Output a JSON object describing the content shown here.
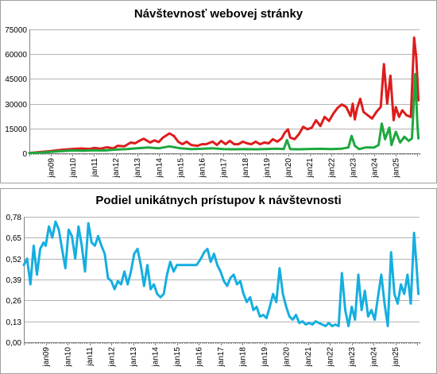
{
  "chart_data": [
    {
      "type": "line",
      "title": "Návštevnosť webovej stránky",
      "xlabel": "",
      "ylabel": "",
      "ylim": [
        0,
        75000
      ],
      "yticks": [
        "0",
        "15000",
        "30000",
        "45000",
        "60000",
        "75000"
      ],
      "xticks": [
        "jan09",
        "jan10",
        "jan11",
        "jan12",
        "jan13",
        "jan14",
        "jan15",
        "jan16",
        "jan17",
        "jan18",
        "jan19",
        "jan20",
        "jan21",
        "jan22",
        "jan23",
        "jan24",
        "jan25"
      ],
      "xlim": [
        2008.0,
        2026.1
      ],
      "grid": "horizontal",
      "legend": "none",
      "series": [
        {
          "color": "#dd1c1c",
          "points": [
            [
              2008.0,
              200
            ],
            [
              2008.5,
              700
            ],
            [
              2009.0,
              1300
            ],
            [
              2009.3,
              1800
            ],
            [
              2009.6,
              2200
            ],
            [
              2010.0,
              2600
            ],
            [
              2010.4,
              2900
            ],
            [
              2010.8,
              2600
            ],
            [
              2011.0,
              3200
            ],
            [
              2011.3,
              2800
            ],
            [
              2011.6,
              3600
            ],
            [
              2011.9,
              3000
            ],
            [
              2012.1,
              4500
            ],
            [
              2012.4,
              4200
            ],
            [
              2012.7,
              6500
            ],
            [
              2012.9,
              6000
            ],
            [
              2013.1,
              7500
            ],
            [
              2013.3,
              8800
            ],
            [
              2013.6,
              6500
            ],
            [
              2013.8,
              7800
            ],
            [
              2014.0,
              6800
            ],
            [
              2014.2,
              9500
            ],
            [
              2014.5,
              12000
            ],
            [
              2014.7,
              10500
            ],
            [
              2014.9,
              7000
            ],
            [
              2015.1,
              5500
            ],
            [
              2015.3,
              7000
            ],
            [
              2015.5,
              5000
            ],
            [
              2015.8,
              4500
            ],
            [
              2016.0,
              5500
            ],
            [
              2016.2,
              5500
            ],
            [
              2016.5,
              7000
            ],
            [
              2016.7,
              5000
            ],
            [
              2016.9,
              7500
            ],
            [
              2017.1,
              5500
            ],
            [
              2017.3,
              7500
            ],
            [
              2017.5,
              5500
            ],
            [
              2017.7,
              5500
            ],
            [
              2017.9,
              7000
            ],
            [
              2018.1,
              6000
            ],
            [
              2018.3,
              5500
            ],
            [
              2018.5,
              7000
            ],
            [
              2018.7,
              5500
            ],
            [
              2018.9,
              6500
            ],
            [
              2019.1,
              6000
            ],
            [
              2019.3,
              8500
            ],
            [
              2019.5,
              7000
            ],
            [
              2019.7,
              9000
            ],
            [
              2019.85,
              12500
            ],
            [
              2020.0,
              14500
            ],
            [
              2020.1,
              9500
            ],
            [
              2020.3,
              8500
            ],
            [
              2020.5,
              11500
            ],
            [
              2020.7,
              16000
            ],
            [
              2020.9,
              14500
            ],
            [
              2021.1,
              15500
            ],
            [
              2021.3,
              20000
            ],
            [
              2021.5,
              16500
            ],
            [
              2021.7,
              22000
            ],
            [
              2021.9,
              19500
            ],
            [
              2022.1,
              24000
            ],
            [
              2022.3,
              27500
            ],
            [
              2022.5,
              29500
            ],
            [
              2022.7,
              28000
            ],
            [
              2022.9,
              22500
            ],
            [
              2023.0,
              30000
            ],
            [
              2023.1,
              20500
            ],
            [
              2023.2,
              27000
            ],
            [
              2023.35,
              33000
            ],
            [
              2023.5,
              25000
            ],
            [
              2023.7,
              23000
            ],
            [
              2023.9,
              21000
            ],
            [
              2024.1,
              25000
            ],
            [
              2024.3,
              28000
            ],
            [
              2024.45,
              54000
            ],
            [
              2024.6,
              30000
            ],
            [
              2024.75,
              47000
            ],
            [
              2024.9,
              20000
            ],
            [
              2025.0,
              28000
            ],
            [
              2025.15,
              22000
            ],
            [
              2025.3,
              26000
            ],
            [
              2025.5,
              23000
            ],
            [
              2025.7,
              22000
            ],
            [
              2025.85,
              70000
            ],
            [
              2025.95,
              58000
            ],
            [
              2026.05,
              32000
            ]
          ]
        },
        {
          "color": "#1da83e",
          "points": [
            [
              2008.0,
              100
            ],
            [
              2008.5,
              400
            ],
            [
              2009.0,
              800
            ],
            [
              2009.5,
              1300
            ],
            [
              2010.0,
              1700
            ],
            [
              2010.5,
              1500
            ],
            [
              2011.0,
              1800
            ],
            [
              2011.5,
              1700
            ],
            [
              2012.0,
              2200
            ],
            [
              2012.5,
              2500
            ],
            [
              2013.0,
              3000
            ],
            [
              2013.5,
              3500
            ],
            [
              2014.0,
              3000
            ],
            [
              2014.5,
              4200
            ],
            [
              2015.0,
              3000
            ],
            [
              2015.5,
              2500
            ],
            [
              2016.0,
              2700
            ],
            [
              2016.5,
              3000
            ],
            [
              2017.0,
              2500
            ],
            [
              2017.5,
              2400
            ],
            [
              2018.0,
              2500
            ],
            [
              2018.5,
              2400
            ],
            [
              2019.0,
              2600
            ],
            [
              2019.5,
              2800
            ],
            [
              2019.8,
              2500
            ],
            [
              2019.95,
              8000
            ],
            [
              2020.1,
              2500
            ],
            [
              2020.5,
              2400
            ],
            [
              2021.0,
              2600
            ],
            [
              2021.5,
              2700
            ],
            [
              2022.0,
              2500
            ],
            [
              2022.5,
              2800
            ],
            [
              2022.8,
              3500
            ],
            [
              2022.95,
              10500
            ],
            [
              2023.1,
              4500
            ],
            [
              2023.3,
              2500
            ],
            [
              2023.6,
              3500
            ],
            [
              2024.0,
              3500
            ],
            [
              2024.2,
              5000
            ],
            [
              2024.35,
              18000
            ],
            [
              2024.5,
              8500
            ],
            [
              2024.7,
              15500
            ],
            [
              2024.8,
              5000
            ],
            [
              2025.0,
              13000
            ],
            [
              2025.2,
              6500
            ],
            [
              2025.4,
              10000
            ],
            [
              2025.6,
              7500
            ],
            [
              2025.75,
              9000
            ],
            [
              2025.9,
              48000
            ],
            [
              2026.0,
              18000
            ],
            [
              2026.05,
              9000
            ]
          ]
        }
      ]
    },
    {
      "type": "line",
      "title": "Podiel unikátnych prístupov k návštevnosti",
      "xlabel": "",
      "ylabel": "",
      "ylim": [
        0,
        0.78
      ],
      "yticks": [
        "0,00",
        "0,13",
        "0,26",
        "0,39",
        "0,52",
        "0,65",
        "0,78"
      ],
      "xticks": [
        "jan09",
        "jan10",
        "jan11",
        "jan12",
        "jan13",
        "jan14",
        "jan15",
        "jan16",
        "jan17",
        "jan18",
        "jan19",
        "jan20",
        "jan21",
        "jan22",
        "jan23",
        "jan24",
        "jan25"
      ],
      "xlim": [
        2008.0,
        2026.1
      ],
      "grid": "horizontal",
      "legend": "none",
      "series": [
        {
          "color": "#16aee0",
          "points": [
            [
              2008.0,
              0.48
            ],
            [
              2008.15,
              0.52
            ],
            [
              2008.3,
              0.36
            ],
            [
              2008.45,
              0.6
            ],
            [
              2008.6,
              0.42
            ],
            [
              2008.75,
              0.58
            ],
            [
              2008.9,
              0.62
            ],
            [
              2009.0,
              0.6
            ],
            [
              2009.15,
              0.72
            ],
            [
              2009.3,
              0.65
            ],
            [
              2009.45,
              0.75
            ],
            [
              2009.6,
              0.7
            ],
            [
              2009.75,
              0.58
            ],
            [
              2009.9,
              0.46
            ],
            [
              2010.05,
              0.7
            ],
            [
              2010.2,
              0.66
            ],
            [
              2010.35,
              0.52
            ],
            [
              2010.5,
              0.72
            ],
            [
              2010.65,
              0.6
            ],
            [
              2010.8,
              0.44
            ],
            [
              2010.95,
              0.74
            ],
            [
              2011.1,
              0.62
            ],
            [
              2011.25,
              0.6
            ],
            [
              2011.4,
              0.66
            ],
            [
              2011.55,
              0.6
            ],
            [
              2011.7,
              0.55
            ],
            [
              2011.85,
              0.4
            ],
            [
              2012.0,
              0.38
            ],
            [
              2012.15,
              0.33
            ],
            [
              2012.3,
              0.38
            ],
            [
              2012.45,
              0.36
            ],
            [
              2012.6,
              0.44
            ],
            [
              2012.75,
              0.36
            ],
            [
              2012.9,
              0.44
            ],
            [
              2013.05,
              0.55
            ],
            [
              2013.2,
              0.58
            ],
            [
              2013.35,
              0.48
            ],
            [
              2013.5,
              0.35
            ],
            [
              2013.65,
              0.48
            ],
            [
              2013.8,
              0.33
            ],
            [
              2013.95,
              0.36
            ],
            [
              2014.1,
              0.3
            ],
            [
              2014.25,
              0.28
            ],
            [
              2014.4,
              0.3
            ],
            [
              2014.55,
              0.42
            ],
            [
              2014.7,
              0.5
            ],
            [
              2014.85,
              0.44
            ],
            [
              2015.0,
              0.48
            ],
            [
              2015.3,
              0.48
            ],
            [
              2015.6,
              0.48
            ],
            [
              2015.9,
              0.48
            ],
            [
              2016.1,
              0.52
            ],
            [
              2016.25,
              0.56
            ],
            [
              2016.4,
              0.58
            ],
            [
              2016.55,
              0.5
            ],
            [
              2016.7,
              0.55
            ],
            [
              2016.85,
              0.48
            ],
            [
              2017.0,
              0.44
            ],
            [
              2017.15,
              0.38
            ],
            [
              2017.3,
              0.35
            ],
            [
              2017.45,
              0.4
            ],
            [
              2017.6,
              0.42
            ],
            [
              2017.75,
              0.36
            ],
            [
              2017.9,
              0.38
            ],
            [
              2018.05,
              0.3
            ],
            [
              2018.2,
              0.25
            ],
            [
              2018.35,
              0.28
            ],
            [
              2018.5,
              0.2
            ],
            [
              2018.65,
              0.22
            ],
            [
              2018.8,
              0.16
            ],
            [
              2018.95,
              0.17
            ],
            [
              2019.1,
              0.15
            ],
            [
              2019.25,
              0.22
            ],
            [
              2019.4,
              0.3
            ],
            [
              2019.55,
              0.25
            ],
            [
              2019.7,
              0.46
            ],
            [
              2019.85,
              0.3
            ],
            [
              2020.0,
              0.22
            ],
            [
              2020.15,
              0.16
            ],
            [
              2020.3,
              0.14
            ],
            [
              2020.45,
              0.17
            ],
            [
              2020.6,
              0.12
            ],
            [
              2020.75,
              0.13
            ],
            [
              2020.9,
              0.11
            ],
            [
              2021.05,
              0.12
            ],
            [
              2021.2,
              0.11
            ],
            [
              2021.35,
              0.13
            ],
            [
              2021.5,
              0.12
            ],
            [
              2021.65,
              0.11
            ],
            [
              2021.8,
              0.1
            ],
            [
              2021.95,
              0.12
            ],
            [
              2022.1,
              0.1
            ],
            [
              2022.25,
              0.11
            ],
            [
              2022.4,
              0.1
            ],
            [
              2022.55,
              0.43
            ],
            [
              2022.7,
              0.2
            ],
            [
              2022.85,
              0.1
            ],
            [
              2023.0,
              0.22
            ],
            [
              2023.15,
              0.14
            ],
            [
              2023.3,
              0.42
            ],
            [
              2023.45,
              0.2
            ],
            [
              2023.6,
              0.32
            ],
            [
              2023.75,
              0.16
            ],
            [
              2023.9,
              0.2
            ],
            [
              2024.05,
              0.14
            ],
            [
              2024.2,
              0.28
            ],
            [
              2024.35,
              0.42
            ],
            [
              2024.5,
              0.24
            ],
            [
              2024.65,
              0.1
            ],
            [
              2024.8,
              0.56
            ],
            [
              2024.95,
              0.3
            ],
            [
              2025.1,
              0.24
            ],
            [
              2025.25,
              0.36
            ],
            [
              2025.4,
              0.3
            ],
            [
              2025.55,
              0.42
            ],
            [
              2025.7,
              0.24
            ],
            [
              2025.85,
              0.68
            ],
            [
              2025.95,
              0.5
            ],
            [
              2026.05,
              0.3
            ]
          ]
        }
      ]
    }
  ]
}
